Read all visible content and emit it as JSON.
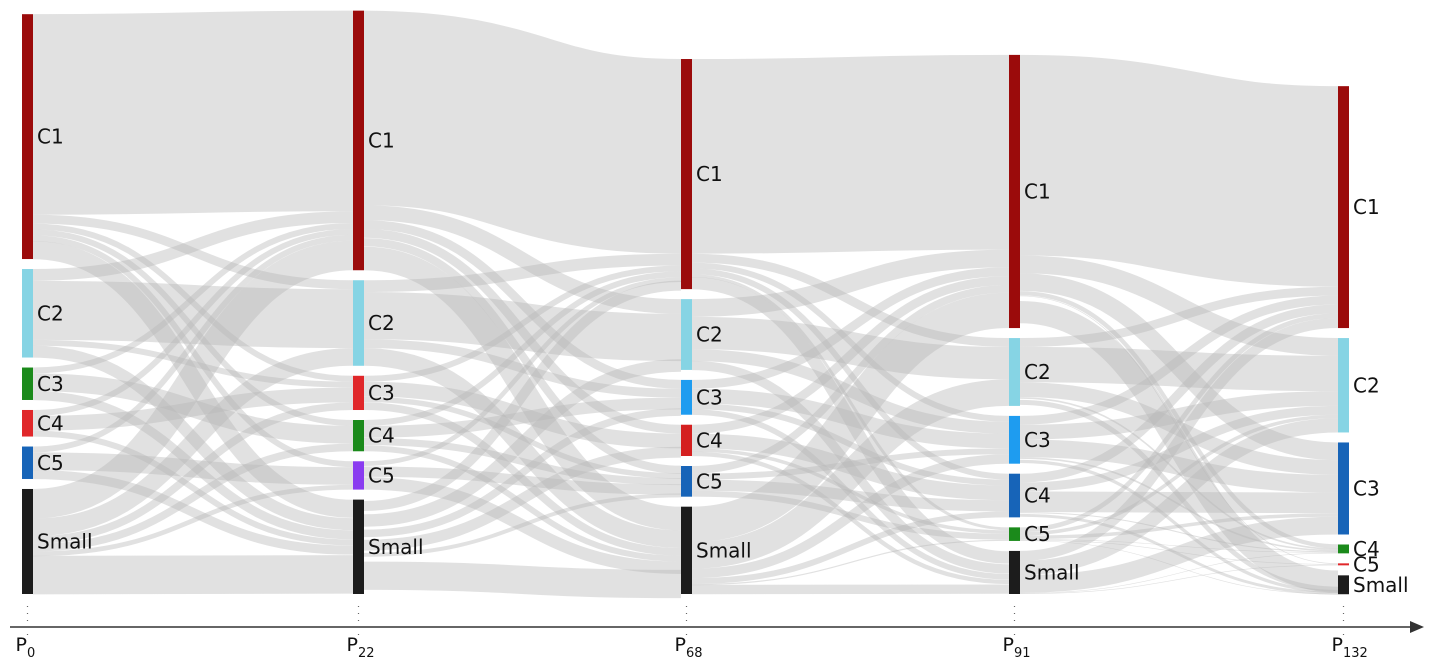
{
  "chart_data": {
    "type": "sankey",
    "axis": {
      "ticks": [
        {
          "main": "P",
          "sub": "0"
        },
        {
          "main": "P",
          "sub": "22"
        },
        {
          "main": "P",
          "sub": "68"
        },
        {
          "main": "P",
          "sub": "91"
        },
        {
          "main": "P",
          "sub": "132"
        }
      ]
    },
    "stages": [
      {
        "name": "P0",
        "nodes": [
          {
            "label": "C1",
            "size": 41.5,
            "color": "#9b0b0b"
          },
          {
            "label": "C2",
            "size": 15.0,
            "color": "#86d4e4"
          },
          {
            "label": "C3",
            "size": 5.5,
            "color": "#1b8a1b"
          },
          {
            "label": "C4",
            "size": 4.5,
            "color": "#e0272a"
          },
          {
            "label": "C5",
            "size": 5.5,
            "color": "#1764b8"
          },
          {
            "label": "Small",
            "size": 17.8,
            "color": "#1c1c1c"
          }
        ]
      },
      {
        "name": "P22",
        "nodes": [
          {
            "label": "C1",
            "size": 44.0,
            "color": "#9b0b0b"
          },
          {
            "label": "C2",
            "size": 14.5,
            "color": "#86d4e4"
          },
          {
            "label": "C3",
            "size": 5.8,
            "color": "#e0272a"
          },
          {
            "label": "C4",
            "size": 5.3,
            "color": "#1b8a1b"
          },
          {
            "label": "C5",
            "size": 4.8,
            "color": "#8a3cf0"
          },
          {
            "label": "Small",
            "size": 16.0,
            "color": "#1c1c1c"
          }
        ]
      },
      {
        "name": "P68",
        "nodes": [
          {
            "label": "C1",
            "size": 39.0,
            "color": "#9b0b0b"
          },
          {
            "label": "C2",
            "size": 12.0,
            "color": "#86d4e4"
          },
          {
            "label": "C3",
            "size": 5.9,
            "color": "#1e9cf0"
          },
          {
            "label": "C4",
            "size": 5.3,
            "color": "#d42020"
          },
          {
            "label": "C5",
            "size": 5.2,
            "color": "#1764b8"
          },
          {
            "label": "Small",
            "size": 14.8,
            "color": "#1c1c1c"
          }
        ]
      },
      {
        "name": "P91",
        "nodes": [
          {
            "label": "C1",
            "size": 46.3,
            "color": "#9b0b0b"
          },
          {
            "label": "C2",
            "size": 11.5,
            "color": "#86d4e4"
          },
          {
            "label": "C3",
            "size": 8.1,
            "color": "#1e9cf0"
          },
          {
            "label": "C4",
            "size": 7.4,
            "color": "#1764b8"
          },
          {
            "label": "C5",
            "size": 2.3,
            "color": "#1b8a1b"
          },
          {
            "label": "Small",
            "size": 7.3,
            "color": "#1c1c1c"
          }
        ]
      },
      {
        "name": "P132",
        "nodes": [
          {
            "label": "C1",
            "size": 41.0,
            "color": "#9b0b0b"
          },
          {
            "label": "C2",
            "size": 16.0,
            "color": "#86d4e4"
          },
          {
            "label": "C3",
            "size": 15.6,
            "color": "#1764b8"
          },
          {
            "label": "C4",
            "size": 1.5,
            "color": "#1b8a1b"
          },
          {
            "label": "C5",
            "size": 0.3,
            "color": "#e0272a"
          },
          {
            "label": "Small",
            "size": 3.2,
            "color": "#1c1c1c"
          }
        ]
      }
    ],
    "flows": [
      [
        {
          "from": 0,
          "to": 0,
          "value": 34,
          "w": 1.0
        },
        {
          "from": 0,
          "to": 1,
          "value": 1.5,
          "w": 1.0
        },
        {
          "from": 0,
          "to": 2,
          "value": 1.0,
          "w": 1.0
        },
        {
          "from": 0,
          "to": 3,
          "value": 1.0,
          "w": 1.0
        },
        {
          "from": 0,
          "to": 4,
          "value": 1.0,
          "w": 1.0
        },
        {
          "from": 0,
          "to": 5,
          "value": 3.0,
          "w": 1.0
        },
        {
          "from": 1,
          "to": 0,
          "value": 2.0,
          "w": 1.0
        },
        {
          "from": 1,
          "to": 1,
          "value": 10.0,
          "w": 1.0
        },
        {
          "from": 1,
          "to": 2,
          "value": 1.0,
          "w": 1.0
        },
        {
          "from": 1,
          "to": 5,
          "value": 2.0,
          "w": 1.0
        },
        {
          "from": 2,
          "to": 0,
          "value": 1.0,
          "w": 1.0
        },
        {
          "from": 2,
          "to": 3,
          "value": 3.0,
          "w": 1.0
        },
        {
          "from": 2,
          "to": 5,
          "value": 1.5,
          "w": 1.0
        },
        {
          "from": 3,
          "to": 0,
          "value": 1.0,
          "w": 1.0
        },
        {
          "from": 3,
          "to": 2,
          "value": 2.5,
          "w": 1.0
        },
        {
          "from": 3,
          "to": 5,
          "value": 1.0,
          "w": 1.0
        },
        {
          "from": 4,
          "to": 0,
          "value": 1.0,
          "w": 1.0
        },
        {
          "from": 4,
          "to": 4,
          "value": 3.0,
          "w": 1.0
        },
        {
          "from": 4,
          "to": 5,
          "value": 1.5,
          "w": 1.0
        },
        {
          "from": 5,
          "to": 0,
          "value": 5.0,
          "w": 1.0
        },
        {
          "from": 5,
          "to": 1,
          "value": 3.0,
          "w": 1.0
        },
        {
          "from": 5,
          "to": 2,
          "value": 1.3,
          "w": 1.0
        },
        {
          "from": 5,
          "to": 3,
          "value": 1.3,
          "w": 1.0
        },
        {
          "from": 5,
          "to": 4,
          "value": 0.8,
          "w": 1.0
        },
        {
          "from": 5,
          "to": 5,
          "value": 6.4,
          "w": 1.0
        }
      ],
      [
        {
          "from": 0,
          "to": 0,
          "value": 33,
          "w": 1.0
        },
        {
          "from": 0,
          "to": 1,
          "value": 2.5,
          "w": 1.0
        },
        {
          "from": 0,
          "to": 2,
          "value": 1.5,
          "w": 1.0
        },
        {
          "from": 0,
          "to": 3,
          "value": 1.5,
          "w": 1.0
        },
        {
          "from": 0,
          "to": 4,
          "value": 1.5,
          "w": 1.0
        },
        {
          "from": 0,
          "to": 5,
          "value": 4.0,
          "w": 1.0
        },
        {
          "from": 1,
          "to": 0,
          "value": 2.0,
          "w": 1.0
        },
        {
          "from": 1,
          "to": 1,
          "value": 8.0,
          "w": 1.0
        },
        {
          "from": 1,
          "to": 2,
          "value": 1.5,
          "w": 1.0
        },
        {
          "from": 1,
          "to": 5,
          "value": 3.0,
          "w": 1.0
        },
        {
          "from": 2,
          "to": 0,
          "value": 1.0,
          "w": 1.0
        },
        {
          "from": 2,
          "to": 3,
          "value": 2.5,
          "w": 1.0
        },
        {
          "from": 2,
          "to": 4,
          "value": 1.0,
          "w": 1.0
        },
        {
          "from": 2,
          "to": 5,
          "value": 1.3,
          "w": 1.0
        },
        {
          "from": 3,
          "to": 0,
          "value": 1.0,
          "w": 1.0
        },
        {
          "from": 3,
          "to": 2,
          "value": 2.0,
          "w": 1.0
        },
        {
          "from": 3,
          "to": 4,
          "value": 1.3,
          "w": 1.0
        },
        {
          "from": 3,
          "to": 5,
          "value": 1.0,
          "w": 1.0
        },
        {
          "from": 4,
          "to": 0,
          "value": 0.8,
          "w": 1.0
        },
        {
          "from": 4,
          "to": 4,
          "value": 1.9,
          "w": 1.0
        },
        {
          "from": 4,
          "to": 5,
          "value": 2.1,
          "w": 1.0
        },
        {
          "from": 5,
          "to": 0,
          "value": 1.2,
          "w": 1.0
        },
        {
          "from": 5,
          "to": 1,
          "value": 1.5,
          "w": 1.0
        },
        {
          "from": 5,
          "to": 2,
          "value": 0.9,
          "w": 1.0
        },
        {
          "from": 5,
          "to": 3,
          "value": 1.3,
          "w": 1.0
        },
        {
          "from": 5,
          "to": 4,
          "value": 0.5,
          "w": 1.0
        },
        {
          "from": 5,
          "to": 5,
          "value": 3.4,
          "w": 1.0
        }
      ],
      [
        {
          "from": 0,
          "to": 0,
          "value": 33,
          "w": 1.0
        },
        {
          "from": 0,
          "to": 1,
          "value": 1.5,
          "w": 1.0
        },
        {
          "from": 0,
          "to": 2,
          "value": 1.0,
          "w": 1.0
        },
        {
          "from": 0,
          "to": 3,
          "value": 1.0,
          "w": 1.0
        },
        {
          "from": 0,
          "to": 4,
          "value": 0.5,
          "w": 1.0
        },
        {
          "from": 0,
          "to": 5,
          "value": 2.0,
          "w": 1.0
        },
        {
          "from": 1,
          "to": 0,
          "value": 3.0,
          "w": 1.0
        },
        {
          "from": 1,
          "to": 1,
          "value": 5.5,
          "w": 1.0
        },
        {
          "from": 1,
          "to": 2,
          "value": 2.0,
          "w": 1.0
        },
        {
          "from": 1,
          "to": 5,
          "value": 1.5,
          "w": 1.0
        },
        {
          "from": 2,
          "to": 0,
          "value": 1.5,
          "w": 1.0
        },
        {
          "from": 2,
          "to": 2,
          "value": 2.5,
          "w": 1.0
        },
        {
          "from": 2,
          "to": 3,
          "value": 1.0,
          "w": 1.0
        },
        {
          "from": 2,
          "to": 5,
          "value": 0.9,
          "w": 1.0
        },
        {
          "from": 3,
          "to": 0,
          "value": 1.5,
          "w": 1.0
        },
        {
          "from": 3,
          "to": 3,
          "value": 2.5,
          "w": 1.0
        },
        {
          "from": 3,
          "to": 4,
          "value": 0.6,
          "w": 1.0
        },
        {
          "from": 3,
          "to": 5,
          "value": 0.7,
          "w": 1.0
        },
        {
          "from": 4,
          "to": 0,
          "value": 1.3,
          "w": 1.0
        },
        {
          "from": 4,
          "to": 2,
          "value": 1.0,
          "w": 1.0
        },
        {
          "from": 4,
          "to": 3,
          "value": 1.9,
          "w": 1.0
        },
        {
          "from": 4,
          "to": 4,
          "value": 1.0,
          "w": 1.0
        },
        {
          "from": 5,
          "to": 0,
          "value": 6.0,
          "w": 1.0
        },
        {
          "from": 5,
          "to": 1,
          "value": 4.5,
          "w": 1.0
        },
        {
          "from": 5,
          "to": 2,
          "value": 1.6,
          "w": 1.0
        },
        {
          "from": 5,
          "to": 3,
          "value": 1.0,
          "w": 1.0
        },
        {
          "from": 5,
          "to": 4,
          "value": 0.2,
          "w": 1.0
        },
        {
          "from": 5,
          "to": 5,
          "value": 1.5,
          "w": 1.0
        }
      ],
      [
        {
          "from": 0,
          "to": 0,
          "value": 34,
          "w": 1.0
        },
        {
          "from": 0,
          "to": 1,
          "value": 3.0,
          "w": 1.0
        },
        {
          "from": 0,
          "to": 2,
          "value": 3.0,
          "w": 1.0
        },
        {
          "from": 0,
          "to": 3,
          "value": 0.8,
          "w": 1.0
        },
        {
          "from": 0,
          "to": 4,
          "value": 0.1,
          "w": 1.0
        },
        {
          "from": 0,
          "to": 5,
          "value": 5.4,
          "w": 1.0
        },
        {
          "from": 1,
          "to": 0,
          "value": 1.5,
          "w": 1.0
        },
        {
          "from": 1,
          "to": 1,
          "value": 6.0,
          "w": 1.0
        },
        {
          "from": 1,
          "to": 2,
          "value": 2.5,
          "w": 1.0
        },
        {
          "from": 1,
          "to": 3,
          "value": 0.3,
          "w": 1.0
        },
        {
          "from": 1,
          "to": 5,
          "value": 1.2,
          "w": 1.0
        },
        {
          "from": 2,
          "to": 0,
          "value": 1.5,
          "w": 1.0
        },
        {
          "from": 2,
          "to": 1,
          "value": 2.5,
          "w": 1.0
        },
        {
          "from": 2,
          "to": 2,
          "value": 3.0,
          "w": 1.0
        },
        {
          "from": 2,
          "to": 3,
          "value": 0.3,
          "w": 1.0
        },
        {
          "from": 2,
          "to": 5,
          "value": 0.8,
          "w": 1.0
        },
        {
          "from": 3,
          "to": 0,
          "value": 1.5,
          "w": 1.0
        },
        {
          "from": 3,
          "to": 1,
          "value": 1.5,
          "w": 1.0
        },
        {
          "from": 3,
          "to": 2,
          "value": 3.5,
          "w": 1.0
        },
        {
          "from": 3,
          "to": 3,
          "value": 0.2,
          "w": 1.0
        },
        {
          "from": 3,
          "to": 5,
          "value": 0.7,
          "w": 1.0
        },
        {
          "from": 4,
          "to": 0,
          "value": 0.8,
          "w": 1.0
        },
        {
          "from": 4,
          "to": 1,
          "value": 0.6,
          "w": 1.0
        },
        {
          "from": 4,
          "to": 2,
          "value": 0.6,
          "w": 1.0
        },
        {
          "from": 4,
          "to": 3,
          "value": 0.1,
          "w": 1.0
        },
        {
          "from": 4,
          "to": 4,
          "value": 0.1,
          "w": 1.0
        },
        {
          "from": 4,
          "to": 5,
          "value": 0.1,
          "w": 1.0
        },
        {
          "from": 5,
          "to": 0,
          "value": 1.7,
          "w": 1.0
        },
        {
          "from": 5,
          "to": 1,
          "value": 2.4,
          "w": 1.0
        },
        {
          "from": 5,
          "to": 2,
          "value": 3.0,
          "w": 1.0
        },
        {
          "from": 5,
          "to": 3,
          "value": 0.1,
          "w": 1.0
        },
        {
          "from": 5,
          "to": 4,
          "value": 0.1,
          "w": 1.0
        }
      ]
    ]
  }
}
